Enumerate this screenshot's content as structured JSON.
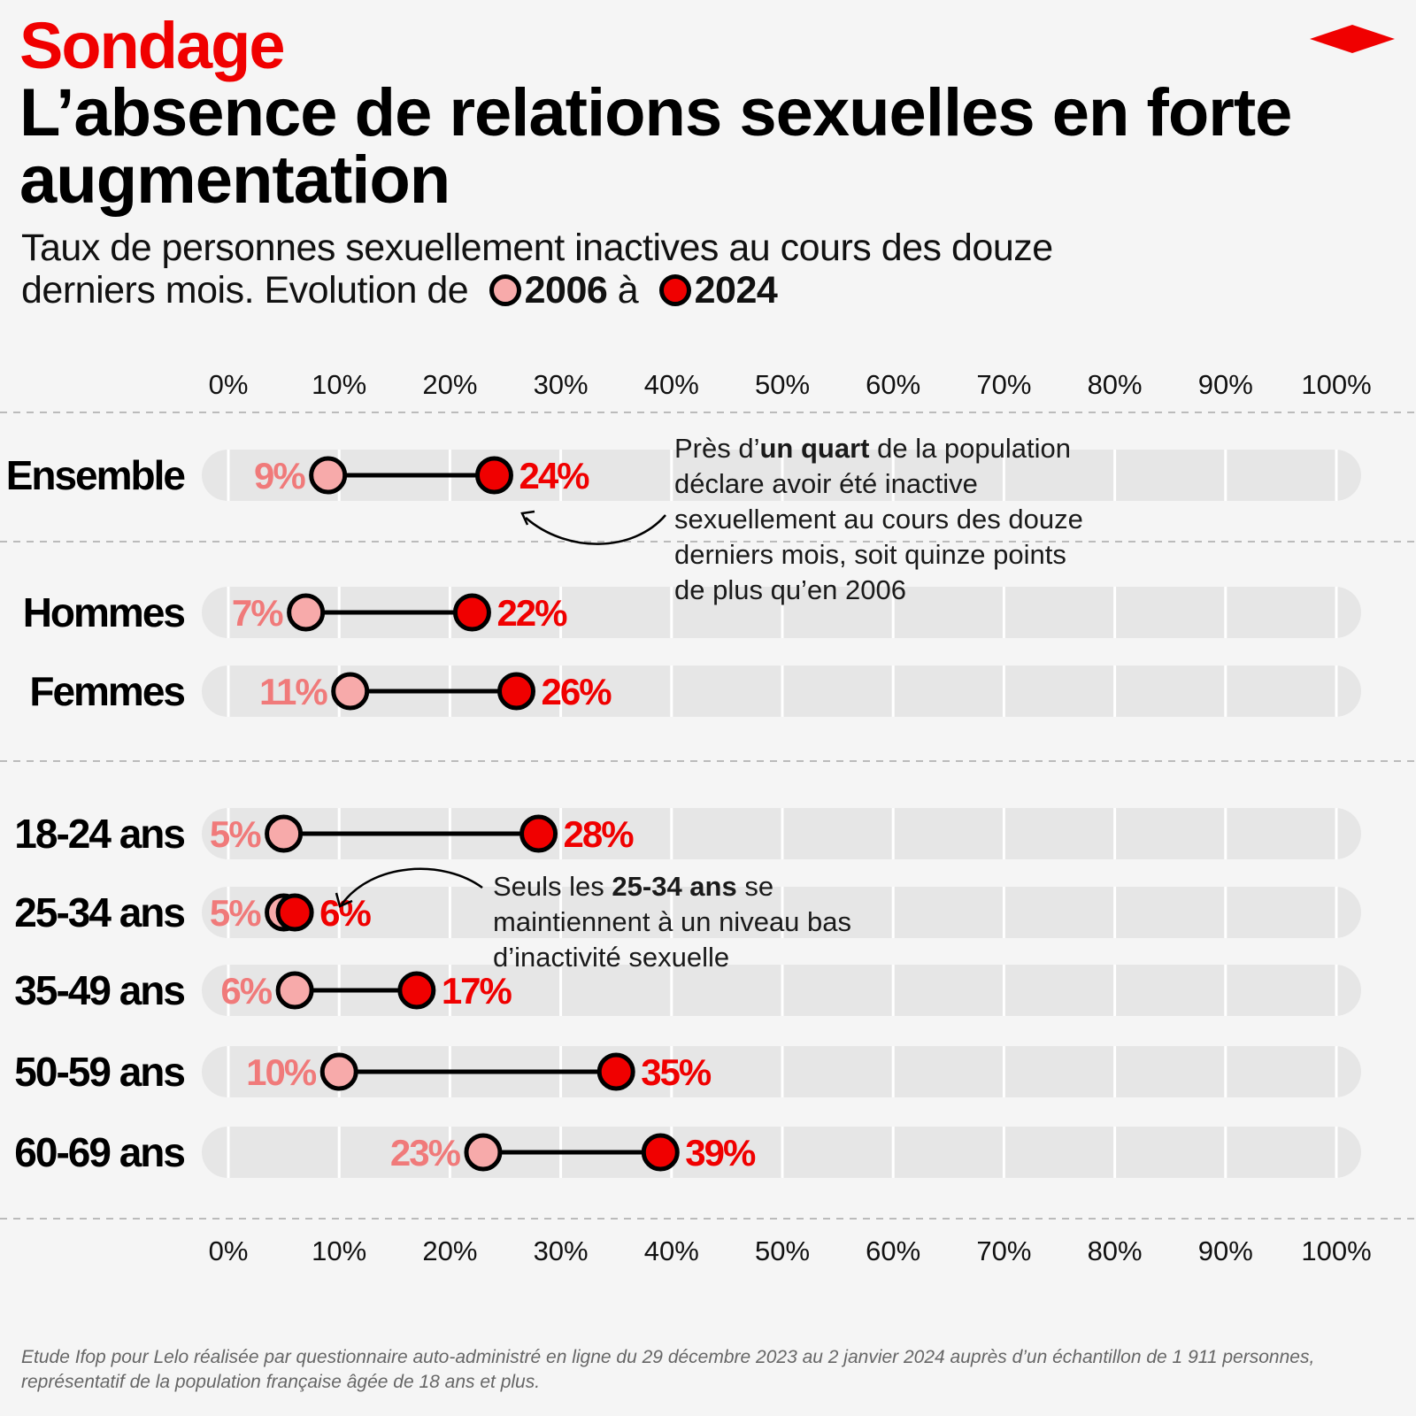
{
  "header": {
    "kicker": "Sondage",
    "title": "L’absence de relations sexuelles en forte augmentation",
    "subtitle": "Taux de personnes sexuellement inactives au cours des douze derniers mois. Evolution de",
    "legend_2006": "2006",
    "legend_connector": "à",
    "legend_2024": "2024"
  },
  "colors": {
    "accent": "#f00000",
    "dot_2006": "#f7aaaa",
    "dot_2024": "#f00000",
    "label_2006": "#f07a7a",
    "track": "#e6e6e6"
  },
  "chart_data": {
    "type": "dumbbell",
    "x_range": [
      0,
      100
    ],
    "x_tick_labels": [
      "0%",
      "10%",
      "20%",
      "30%",
      "40%",
      "50%",
      "60%",
      "70%",
      "80%",
      "90%",
      "100%"
    ],
    "series_names": [
      "2006",
      "2024"
    ],
    "categories": [
      "Ensemble",
      "Hommes",
      "Femmes",
      "18-24 ans",
      "25-34 ans",
      "35-49 ans",
      "50-59 ans",
      "60-69 ans"
    ],
    "values_2006": [
      9,
      7,
      11,
      5,
      5,
      6,
      10,
      23
    ],
    "values_2024": [
      24,
      22,
      26,
      28,
      6,
      17,
      35,
      39
    ],
    "value_labels_2006": [
      "9%",
      "7%",
      "11%",
      "5%",
      "5%",
      "6%",
      "10%",
      "23%"
    ],
    "value_labels_2024": [
      "24%",
      "22%",
      "26%",
      "28%",
      "6%",
      "17%",
      "35%",
      "39%"
    ],
    "annotations": [
      {
        "row": "Ensemble",
        "parts": [
          {
            "text": "Près d’",
            "bold": false
          },
          {
            "text": "un quart",
            "bold": true
          },
          {
            "text": " de la population|déclare avoir été inactive|sexuellement au cours des douze|derniers mois, soit quinze points|de plus qu’en 2006",
            "bold": false
          }
        ]
      },
      {
        "row": "25-34 ans",
        "parts": [
          {
            "text": "Seuls les ",
            "bold": false
          },
          {
            "text": "25-34 ans",
            "bold": true
          },
          {
            "text": " se|maintiennent à un niveau bas|d’inactivité sexuelle",
            "bold": false
          }
        ]
      }
    ]
  },
  "footnote": "Etude Ifop pour Lelo réalisée par questionnaire auto-administré en ligne du 29 décembre 2023 au 2 janvier 2024 auprès d’un échantillon de 1 911 personnes, représentatif de la population française âgée de 18 ans et plus."
}
